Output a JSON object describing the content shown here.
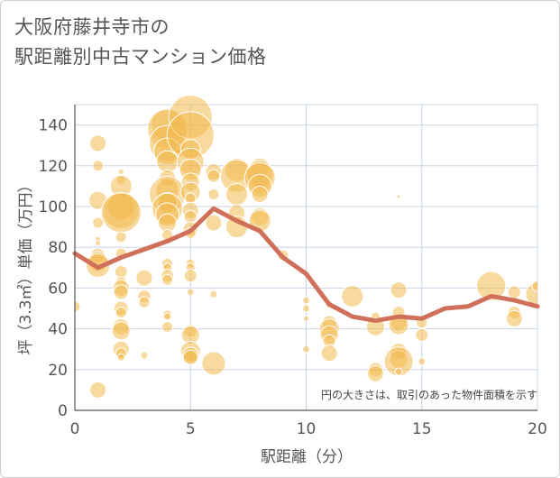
{
  "chart_data": {
    "type": "scatter",
    "title_lines": [
      "大阪府藤井寺市の",
      "駅距離別中古マンション価格"
    ],
    "xlabel": "駅距離（分）",
    "ylabel": "坪（3.3㎡）単価（万円）",
    "annotation": "円の大きさは、取引のあった物件面積を示す",
    "xlim": [
      0,
      20
    ],
    "ylim": [
      0,
      150
    ],
    "x_ticks": [
      0,
      5,
      10,
      15,
      20
    ],
    "y_ticks": [
      0,
      20,
      40,
      60,
      80,
      100,
      120,
      140
    ],
    "grid": true,
    "colors": {
      "bubble": "#f3b94f",
      "line": "#d0705a",
      "grid": "#c8d4e6"
    },
    "series": [
      {
        "kind": "bubble",
        "points": [
          {
            "x": 0,
            "y": 51,
            "r": 6
          },
          {
            "x": 1,
            "y": 131,
            "r": 9
          },
          {
            "x": 1,
            "y": 120,
            "r": 6
          },
          {
            "x": 1,
            "y": 103,
            "r": 10
          },
          {
            "x": 1,
            "y": 92,
            "r": 6
          },
          {
            "x": 1,
            "y": 84,
            "r": 3
          },
          {
            "x": 1,
            "y": 82,
            "r": 3
          },
          {
            "x": 1,
            "y": 76,
            "r": 8
          },
          {
            "x": 1,
            "y": 73,
            "r": 11
          },
          {
            "x": 1,
            "y": 71,
            "r": 13
          },
          {
            "x": 1,
            "y": 10,
            "r": 9
          },
          {
            "x": 2,
            "y": 117,
            "r": 3
          },
          {
            "x": 2,
            "y": 113,
            "r": 5
          },
          {
            "x": 2,
            "y": 110,
            "r": 12
          },
          {
            "x": 2,
            "y": 100,
            "r": 15
          },
          {
            "x": 2,
            "y": 98,
            "r": 20
          },
          {
            "x": 2,
            "y": 97,
            "r": 22
          },
          {
            "x": 2,
            "y": 85,
            "r": 6
          },
          {
            "x": 2,
            "y": 77,
            "r": 6
          },
          {
            "x": 2,
            "y": 68,
            "r": 7
          },
          {
            "x": 2,
            "y": 63,
            "r": 6
          },
          {
            "x": 2,
            "y": 60,
            "r": 9
          },
          {
            "x": 2,
            "y": 58,
            "r": 8
          },
          {
            "x": 2,
            "y": 50,
            "r": 8
          },
          {
            "x": 2,
            "y": 48,
            "r": 6
          },
          {
            "x": 2,
            "y": 41,
            "r": 9
          },
          {
            "x": 2,
            "y": 39,
            "r": 10
          },
          {
            "x": 2,
            "y": 30,
            "r": 9
          },
          {
            "x": 2,
            "y": 28,
            "r": 6
          },
          {
            "x": 2,
            "y": 26,
            "r": 4
          },
          {
            "x": 3,
            "y": 65,
            "r": 9
          },
          {
            "x": 3,
            "y": 56,
            "r": 7
          },
          {
            "x": 3,
            "y": 53,
            "r": 6
          },
          {
            "x": 3,
            "y": 27,
            "r": 4
          },
          {
            "x": 4,
            "y": 140,
            "r": 18
          },
          {
            "x": 4,
            "y": 138,
            "r": 22
          },
          {
            "x": 4,
            "y": 131,
            "r": 20
          },
          {
            "x": 4,
            "y": 127,
            "r": 15
          },
          {
            "x": 4,
            "y": 122,
            "r": 12
          },
          {
            "x": 4,
            "y": 114,
            "r": 9
          },
          {
            "x": 4,
            "y": 108,
            "r": 13
          },
          {
            "x": 4,
            "y": 106,
            "r": 20
          },
          {
            "x": 4,
            "y": 102,
            "r": 11
          },
          {
            "x": 4,
            "y": 99,
            "r": 17
          },
          {
            "x": 4,
            "y": 96,
            "r": 13
          },
          {
            "x": 4,
            "y": 92,
            "r": 10
          },
          {
            "x": 4,
            "y": 86,
            "r": 6
          },
          {
            "x": 4,
            "y": 72,
            "r": 6
          },
          {
            "x": 4,
            "y": 70,
            "r": 5
          },
          {
            "x": 4,
            "y": 66,
            "r": 7
          },
          {
            "x": 4,
            "y": 64,
            "r": 6
          },
          {
            "x": 4,
            "y": 47,
            "r": 5
          },
          {
            "x": 4,
            "y": 46,
            "r": 4
          },
          {
            "x": 4,
            "y": 41,
            "r": 6
          },
          {
            "x": 5,
            "y": 144,
            "r": 24
          },
          {
            "x": 5,
            "y": 135,
            "r": 26
          },
          {
            "x": 5,
            "y": 128,
            "r": 11
          },
          {
            "x": 5,
            "y": 122,
            "r": 15
          },
          {
            "x": 5,
            "y": 118,
            "r": 12
          },
          {
            "x": 5,
            "y": 112,
            "r": 10
          },
          {
            "x": 5,
            "y": 107,
            "r": 11
          },
          {
            "x": 5,
            "y": 104,
            "r": 6
          },
          {
            "x": 5,
            "y": 98,
            "r": 9
          },
          {
            "x": 5,
            "y": 95,
            "r": 7
          },
          {
            "x": 5,
            "y": 89,
            "r": 8
          },
          {
            "x": 5,
            "y": 87,
            "r": 6
          },
          {
            "x": 5,
            "y": 72,
            "r": 5
          },
          {
            "x": 5,
            "y": 70,
            "r": 5
          },
          {
            "x": 5,
            "y": 66,
            "r": 7
          },
          {
            "x": 5,
            "y": 58,
            "r": 4
          },
          {
            "x": 5,
            "y": 39,
            "r": 7
          },
          {
            "x": 5,
            "y": 37,
            "r": 10
          },
          {
            "x": 5,
            "y": 29,
            "r": 11
          },
          {
            "x": 5,
            "y": 27,
            "r": 9
          },
          {
            "x": 5,
            "y": 26,
            "r": 8
          },
          {
            "x": 6,
            "y": 117,
            "r": 9
          },
          {
            "x": 6,
            "y": 115,
            "r": 7
          },
          {
            "x": 6,
            "y": 106,
            "r": 6
          },
          {
            "x": 6,
            "y": 92,
            "r": 9
          },
          {
            "x": 6,
            "y": 57,
            "r": 4
          },
          {
            "x": 6,
            "y": 23,
            "r": 13
          },
          {
            "x": 7,
            "y": 118,
            "r": 13
          },
          {
            "x": 7,
            "y": 115,
            "r": 18
          },
          {
            "x": 7,
            "y": 106,
            "r": 12
          },
          {
            "x": 7,
            "y": 97,
            "r": 9
          },
          {
            "x": 7,
            "y": 90,
            "r": 12
          },
          {
            "x": 8,
            "y": 119,
            "r": 11
          },
          {
            "x": 8,
            "y": 116,
            "r": 15
          },
          {
            "x": 8,
            "y": 114,
            "r": 17
          },
          {
            "x": 8,
            "y": 110,
            "r": 13
          },
          {
            "x": 8,
            "y": 106,
            "r": 9
          },
          {
            "x": 8,
            "y": 95,
            "r": 10
          },
          {
            "x": 8,
            "y": 93,
            "r": 12
          },
          {
            "x": 9,
            "y": 76,
            "r": 6
          },
          {
            "x": 10,
            "y": 54,
            "r": 4
          },
          {
            "x": 10,
            "y": 50,
            "r": 4
          },
          {
            "x": 10,
            "y": 45,
            "r": 3
          },
          {
            "x": 10,
            "y": 30,
            "r": 4
          },
          {
            "x": 11,
            "y": 52,
            "r": 4
          },
          {
            "x": 11,
            "y": 43,
            "r": 8
          },
          {
            "x": 11,
            "y": 40,
            "r": 11
          },
          {
            "x": 11,
            "y": 37,
            "r": 10
          },
          {
            "x": 11,
            "y": 34,
            "r": 7
          },
          {
            "x": 11,
            "y": 28,
            "r": 9
          },
          {
            "x": 12,
            "y": 56,
            "r": 12
          },
          {
            "x": 13,
            "y": 46,
            "r": 5
          },
          {
            "x": 13,
            "y": 41,
            "r": 10
          },
          {
            "x": 13,
            "y": 20,
            "r": 8
          },
          {
            "x": 13,
            "y": 18,
            "r": 9
          },
          {
            "x": 14,
            "y": 105,
            "r": 2
          },
          {
            "x": 14,
            "y": 59,
            "r": 9
          },
          {
            "x": 14,
            "y": 48,
            "r": 7
          },
          {
            "x": 14,
            "y": 43,
            "r": 9
          },
          {
            "x": 14,
            "y": 42,
            "r": 11
          },
          {
            "x": 14,
            "y": 29,
            "r": 9
          },
          {
            "x": 14,
            "y": 25,
            "r": 10
          },
          {
            "x": 14,
            "y": 24,
            "r": 16
          },
          {
            "x": 14,
            "y": 19,
            "r": 4
          },
          {
            "x": 15,
            "y": 43,
            "r": 6
          },
          {
            "x": 15,
            "y": 37,
            "r": 7
          },
          {
            "x": 15,
            "y": 24,
            "r": 4
          },
          {
            "x": 18,
            "y": 61,
            "r": 16
          },
          {
            "x": 19,
            "y": 58,
            "r": 7
          },
          {
            "x": 19,
            "y": 48,
            "r": 7
          },
          {
            "x": 19,
            "y": 45,
            "r": 9
          },
          {
            "x": 20,
            "y": 57,
            "r": 13
          },
          {
            "x": 20,
            "y": 61,
            "r": 6
          }
        ]
      },
      {
        "kind": "line",
        "x": [
          0,
          1,
          2,
          3,
          4,
          5,
          6,
          7,
          8,
          9,
          10,
          11,
          12,
          13,
          14,
          15,
          16,
          17,
          18,
          19,
          20
        ],
        "y": [
          77,
          70,
          75,
          79,
          83,
          88,
          99,
          93,
          88,
          75,
          67,
          52,
          46,
          44,
          46,
          45,
          50,
          51,
          56,
          54,
          51
        ]
      }
    ]
  }
}
